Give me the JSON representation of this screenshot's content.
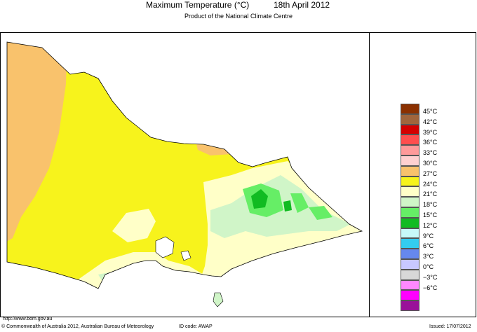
{
  "header": {
    "title": "Maximum Temperature (°C)",
    "date": "18th April 2012",
    "subtitle": "Product of the National Climate Centre"
  },
  "legend": {
    "items": [
      {
        "label": "45°C",
        "color": "#8b3000"
      },
      {
        "label": "42°C",
        "color": "#a0653c"
      },
      {
        "label": "39°C",
        "color": "#d40000"
      },
      {
        "label": "36°C",
        "color": "#ff4e4e"
      },
      {
        "label": "33°C",
        "color": "#ff9a9a"
      },
      {
        "label": "30°C",
        "color": "#ffd0d0"
      },
      {
        "label": "27°C",
        "color": "#f9c26c"
      },
      {
        "label": "24°C",
        "color": "#f7f31c"
      },
      {
        "label": "21°C",
        "color": "#ffffc8"
      },
      {
        "label": "18°C",
        "color": "#d0f5c8"
      },
      {
        "label": "15°C",
        "color": "#66ee66"
      },
      {
        "label": "12°C",
        "color": "#11bb22"
      },
      {
        "label": "9°C",
        "color": "#c8f8f8"
      },
      {
        "label": "6°C",
        "color": "#33ccf0"
      },
      {
        "label": "3°C",
        "color": "#6688ee"
      },
      {
        "label": "0°C",
        "color": "#c8c8ff"
      },
      {
        "label": "−3°C",
        "color": "#d8d8d8"
      },
      {
        "label": "−6°C",
        "color": "#ff88ff"
      },
      {
        "label": "",
        "color": "#ff00ff"
      },
      {
        "label": "",
        "color": "#991199"
      }
    ]
  },
  "footer": {
    "url": "http://www.bom.gov.au",
    "copyright": "© Commonwealth of Australia 2012, Australian Bureau of Meteorology",
    "id_code": "ID code: AWAP",
    "issued": "Issued: 17/07/2012"
  }
}
